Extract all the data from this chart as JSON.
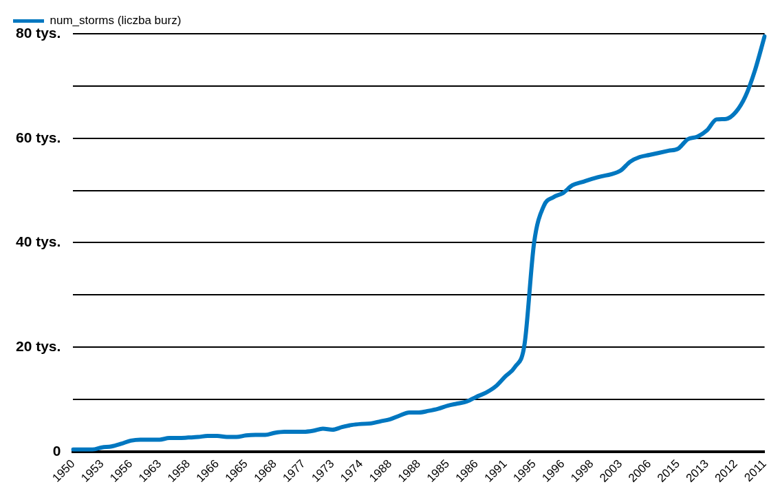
{
  "chart_data": {
    "type": "line",
    "legend": "top left",
    "grid": "y",
    "marker": "none",
    "line_style": "solid",
    "categories": [
      "1950",
      null,
      null,
      "1953",
      null,
      null,
      "1956",
      null,
      null,
      "1963",
      null,
      null,
      "1958",
      null,
      null,
      "1966",
      null,
      null,
      "1965",
      null,
      null,
      "1968",
      null,
      null,
      "1977",
      null,
      null,
      "1973",
      null,
      null,
      "1974",
      null,
      null,
      "1988",
      null,
      null,
      "1988",
      null,
      null,
      "1985",
      null,
      null,
      "1986",
      null,
      null,
      "1991",
      null,
      null,
      "1995",
      null,
      null,
      "1996",
      null,
      null,
      "1998",
      null,
      null,
      "2003",
      null,
      null,
      "2006",
      null,
      null,
      "2015",
      null,
      null,
      "2013",
      null,
      null,
      "2012",
      null,
      null,
      "2011"
    ],
    "series": [
      {
        "name": "num_storms (liczba burz)",
        "color": "#0077c0",
        "values": [
          0.4,
          0.4,
          0.4,
          0.8,
          1.0,
          1.5,
          2.1,
          2.3,
          2.3,
          2.3,
          2.6,
          2.6,
          2.7,
          2.8,
          3.0,
          3.0,
          2.8,
          2.8,
          3.1,
          3.2,
          3.2,
          3.6,
          3.8,
          3.8,
          3.8,
          4.0,
          4.4,
          4.2,
          4.7,
          5.1,
          5.3,
          5.4,
          5.8,
          6.2,
          6.9,
          7.5,
          7.5,
          7.8,
          8.2,
          8.8,
          9.2,
          9.6,
          10.5,
          11.3,
          12.5,
          14.4,
          16.2,
          20.5,
          40.0,
          47.0,
          48.7,
          49.5,
          51.0,
          51.6,
          52.2,
          52.7,
          53.1,
          53.8,
          55.5,
          56.4,
          56.8,
          57.2,
          57.6,
          58.0,
          59.8,
          60.3,
          61.5,
          63.6,
          63.7,
          65.0,
          68.0,
          73.0,
          79.5
        ]
      }
    ],
    "ylim": [
      0,
      80
    ],
    "yticks": [
      0,
      {
        "value": 10,
        "label": null
      },
      {
        "value": 20,
        "label": "20 tys."
      },
      {
        "value": 30,
        "label": null
      },
      {
        "value": 40,
        "label": "40 tys."
      },
      {
        "value": 50,
        "label": null
      },
      {
        "value": 60,
        "label": "60 tys."
      },
      {
        "value": 70,
        "label": null
      },
      {
        "value": 80,
        "label": "80 tys."
      }
    ]
  }
}
